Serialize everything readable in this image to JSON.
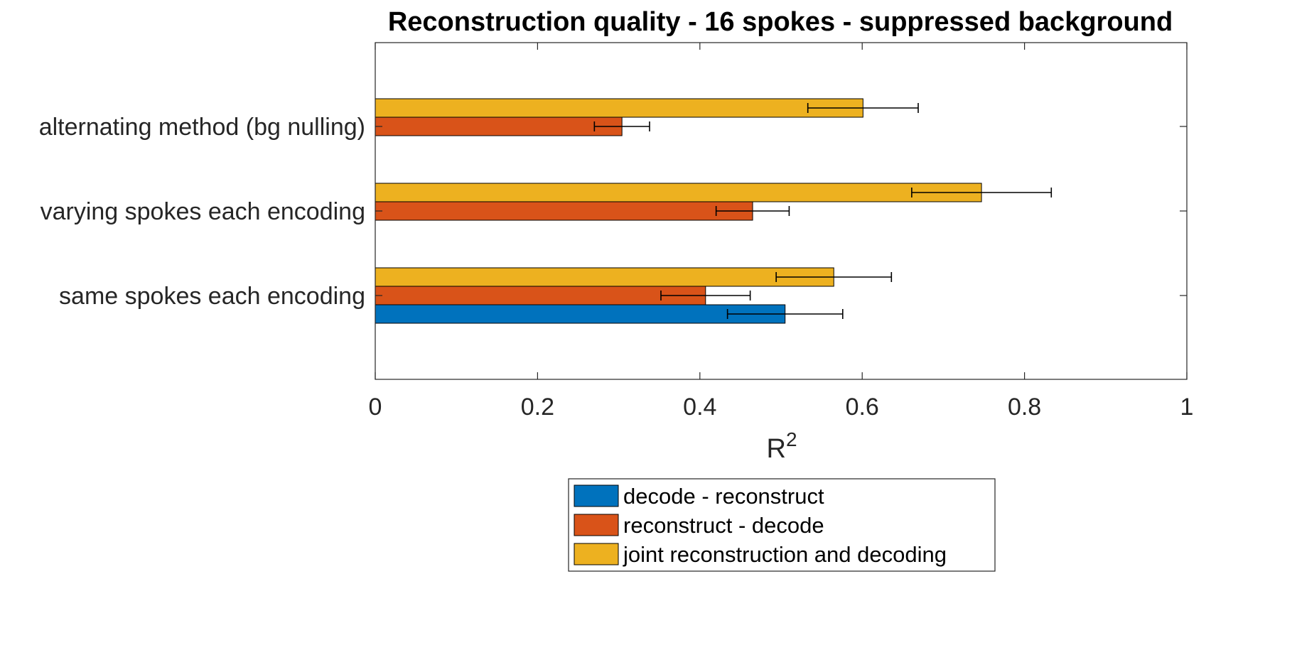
{
  "chart_data": {
    "type": "bar",
    "orientation": "horizontal",
    "title": "Reconstruction quality - 16 spokes - suppressed background",
    "xlabel_base": "R",
    "xlabel_sup": "2",
    "xlim": [
      0,
      1
    ],
    "x_ticks": [
      0,
      0.2,
      0.4,
      0.6,
      0.8,
      1
    ],
    "x_tick_labels": [
      "0",
      "0.2",
      "0.4",
      "0.6",
      "0.8",
      "1"
    ],
    "categories": [
      "same spokes each encoding",
      "varying spokes each encoding",
      "alternating method (bg nulling)"
    ],
    "series": [
      {
        "name": "decode - reconstruct",
        "color": "#0072BD",
        "values": [
          0.505,
          0,
          0
        ],
        "errors": [
          0.071,
          null,
          null
        ]
      },
      {
        "name": "reconstruct - decode",
        "color": "#D95319",
        "values": [
          0.407,
          0.465,
          0.304
        ],
        "errors": [
          0.055,
          0.045,
          0.034
        ]
      },
      {
        "name": "joint reconstruction and decoding",
        "color": "#EDB120",
        "values": [
          0.565,
          0.747,
          0.601
        ],
        "errors": [
          0.071,
          0.086,
          0.068
        ]
      }
    ],
    "grid": false,
    "legend_position": "bottom"
  }
}
